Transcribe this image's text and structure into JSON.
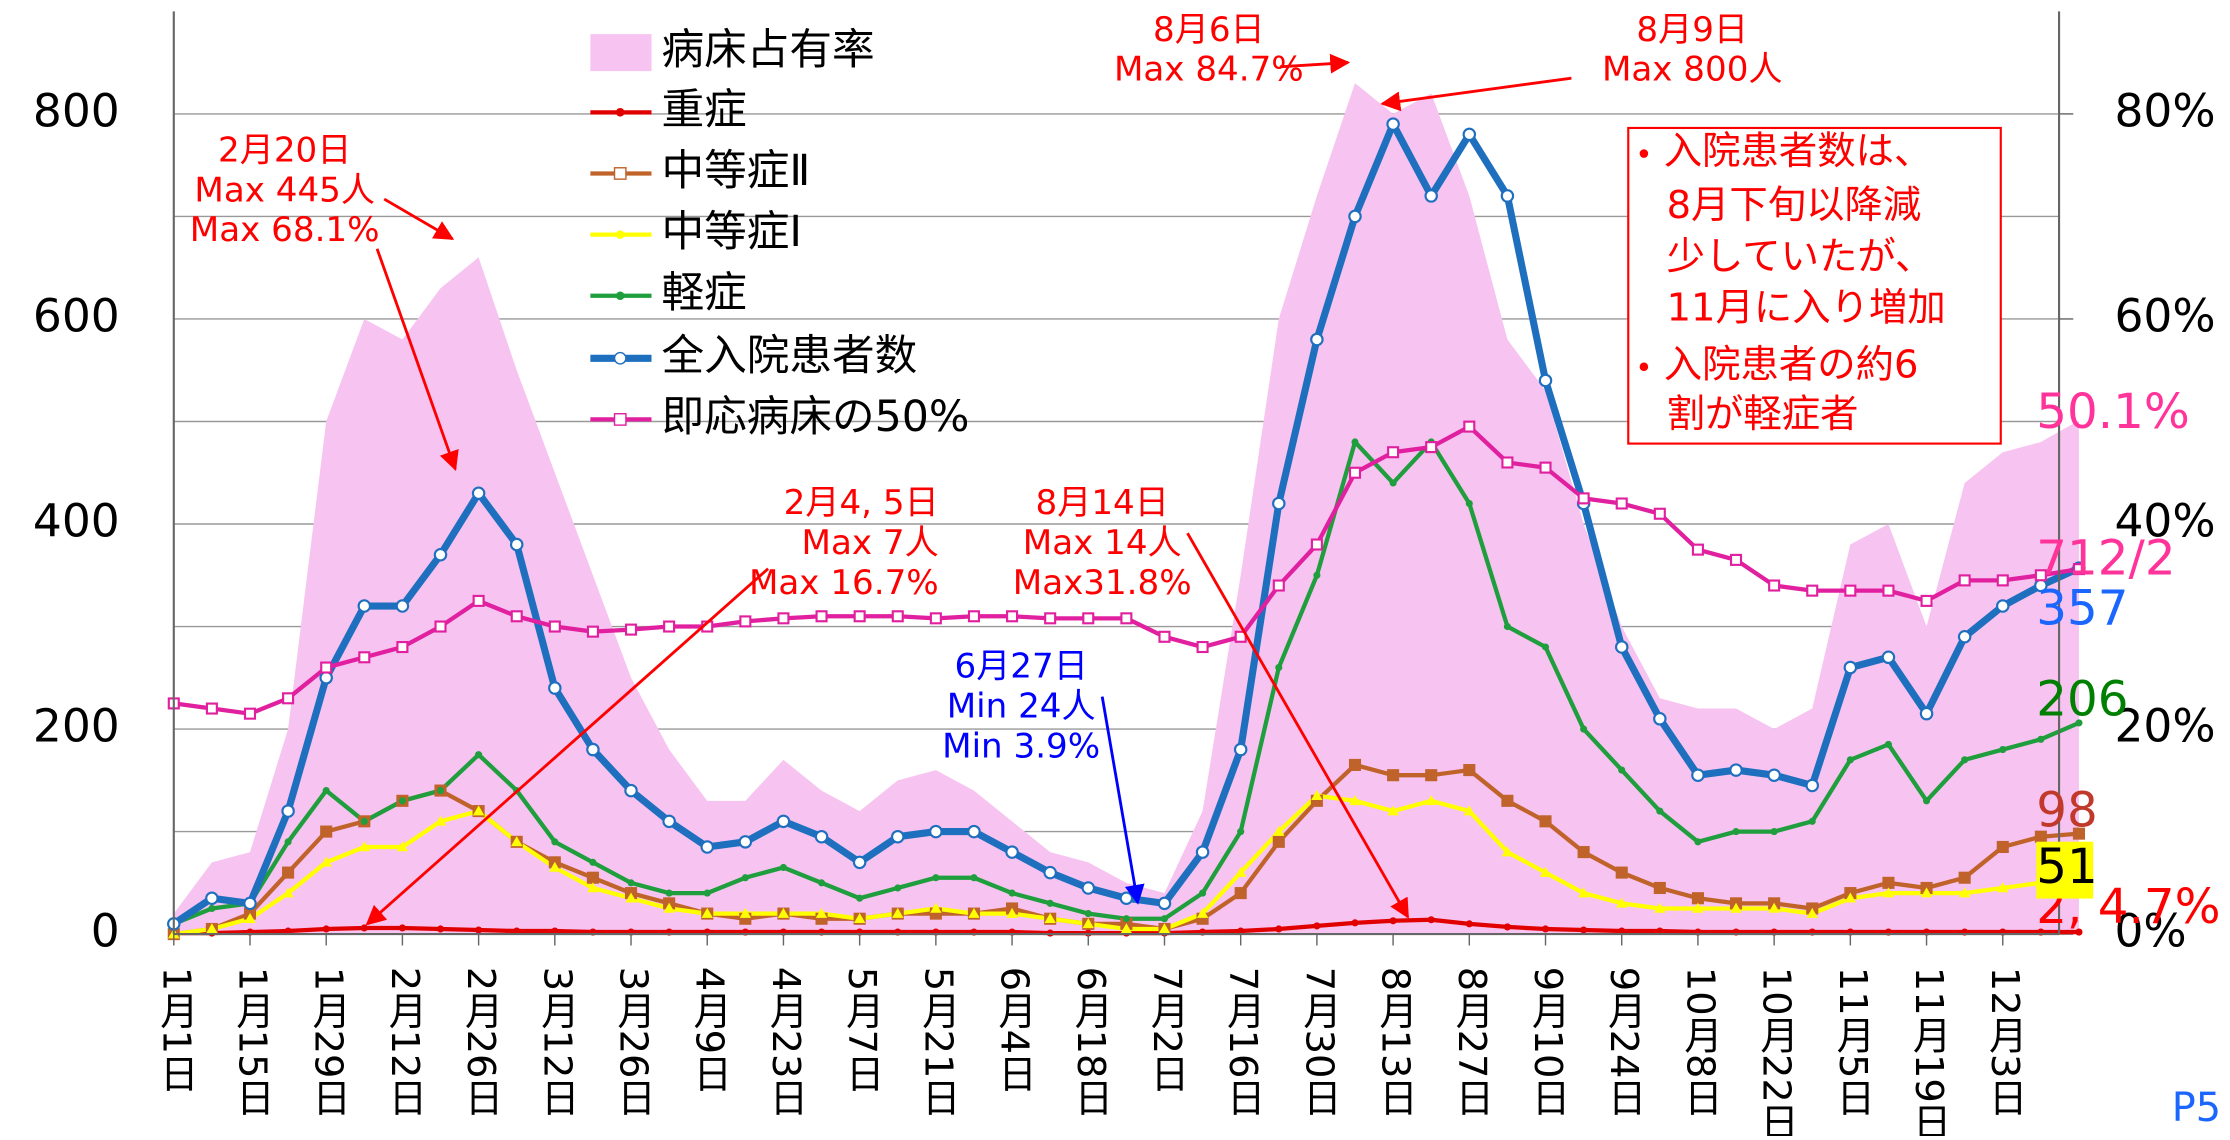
{
  "chart_data": {
    "type": "line",
    "categories": [
      "1月1日",
      null,
      "1月15日",
      null,
      "1月29日",
      null,
      "2月12日",
      null,
      "2月26日",
      null,
      "3月12日",
      null,
      "3月26日",
      null,
      "4月9日",
      null,
      "4月23日",
      null,
      "5月7日",
      null,
      "5月21日",
      null,
      "6月4日",
      null,
      "6月18日",
      null,
      "7月2日",
      null,
      "7月16日",
      null,
      "7月30日",
      null,
      "8月13日",
      null,
      "8月27日",
      null,
      "9月10日",
      null,
      "9月24日",
      null,
      "10月8日",
      null,
      "10月22日",
      null,
      "11月5日",
      null,
      "11月19日",
      null,
      "12月3日",
      null,
      null
    ],
    "ylim": [
      0,
      900
    ],
    "yticks": [
      0,
      200,
      400,
      600,
      800
    ],
    "minor_yticks": [
      100,
      300,
      500,
      700
    ],
    "y2lim": [
      0,
      90
    ],
    "y2ticks": [
      {
        "value": 0,
        "label": "0%"
      },
      {
        "value": 20,
        "label": "20%"
      },
      {
        "value": 40,
        "label": "40%"
      },
      {
        "value": 60,
        "label": "60%"
      },
      {
        "value": 80,
        "label": "80%"
      }
    ],
    "grid": true,
    "series": [
      {
        "name": "病床占有率",
        "kind": "area",
        "axis": "y2",
        "color": "#f7c3f0",
        "end_label": "50.1%",
        "end_color": "#ff3399",
        "values": [
          2,
          7,
          8,
          20,
          50,
          60,
          58,
          63,
          66,
          55,
          45,
          35,
          25,
          18,
          13,
          13,
          17,
          14,
          12,
          15,
          16,
          14,
          11,
          8,
          7,
          5,
          4,
          12,
          35,
          60,
          72,
          83,
          80,
          82,
          72,
          58,
          53,
          40,
          30,
          23,
          22,
          22,
          20,
          22,
          38,
          40,
          30,
          44,
          47,
          48,
          50.1
        ]
      },
      {
        "name": "重症",
        "kind": "line",
        "color": "#e00000",
        "marker": "dot",
        "end_label": "2, 4.7%",
        "end_color": "#ff0000",
        "values": [
          1,
          1,
          2,
          3,
          5,
          6,
          6,
          5,
          4,
          3,
          3,
          2,
          2,
          2,
          2,
          2,
          2,
          2,
          2,
          2,
          2,
          2,
          2,
          1,
          1,
          1,
          1,
          2,
          3,
          5,
          8,
          11,
          13,
          14,
          10,
          7,
          5,
          4,
          3,
          3,
          2,
          2,
          2,
          2,
          2,
          2,
          2,
          2,
          2,
          2,
          2
        ]
      },
      {
        "name": "中等症Ⅱ",
        "kind": "line",
        "color": "#c0632b",
        "marker": "square",
        "end_label": "98",
        "end_color": "#c0392b",
        "values": [
          0,
          5,
          20,
          60,
          100,
          110,
          130,
          140,
          120,
          90,
          70,
          55,
          40,
          30,
          20,
          15,
          20,
          15,
          15,
          20,
          20,
          20,
          25,
          15,
          10,
          10,
          5,
          15,
          40,
          90,
          130,
          165,
          155,
          155,
          160,
          130,
          110,
          80,
          60,
          45,
          35,
          30,
          30,
          25,
          40,
          50,
          45,
          55,
          85,
          95,
          98
        ]
      },
      {
        "name": "中等症Ⅰ",
        "kind": "line",
        "color": "#ffff00",
        "marker": "tri",
        "end_label": "51",
        "end_color": "#000000",
        "end_bg": "#ffff00",
        "values": [
          0,
          5,
          15,
          40,
          70,
          85,
          85,
          110,
          120,
          90,
          65,
          45,
          35,
          25,
          20,
          20,
          20,
          20,
          15,
          20,
          25,
          20,
          20,
          15,
          10,
          5,
          5,
          20,
          60,
          100,
          135,
          130,
          120,
          130,
          120,
          80,
          60,
          40,
          30,
          25,
          25,
          25,
          25,
          20,
          35,
          40,
          40,
          40,
          45,
          50,
          51
        ]
      },
      {
        "name": "軽症",
        "kind": "line",
        "color": "#1e9e3c",
        "marker": "dot",
        "end_label": "206",
        "end_color": "#008000",
        "values": [
          10,
          25,
          30,
          90,
          140,
          110,
          130,
          140,
          175,
          140,
          90,
          70,
          50,
          40,
          40,
          55,
          65,
          50,
          35,
          45,
          55,
          55,
          40,
          30,
          20,
          15,
          15,
          40,
          100,
          260,
          350,
          480,
          440,
          480,
          420,
          300,
          280,
          200,
          160,
          120,
          90,
          100,
          100,
          110,
          170,
          185,
          130,
          170,
          180,
          190,
          206
        ]
      },
      {
        "name": "全入院患者数",
        "kind": "line",
        "color": "#1f6fbf",
        "marker": "circle",
        "width": 5,
        "end_label": "357",
        "end_color": "#1a66ff",
        "values": [
          10,
          35,
          30,
          120,
          250,
          320,
          320,
          370,
          430,
          380,
          240,
          180,
          140,
          110,
          85,
          90,
          110,
          95,
          70,
          95,
          100,
          100,
          80,
          60,
          45,
          35,
          30,
          80,
          180,
          420,
          580,
          700,
          790,
          720,
          780,
          720,
          540,
          420,
          280,
          210,
          155,
          160,
          155,
          145,
          260,
          270,
          215,
          290,
          320,
          340,
          357
        ]
      },
      {
        "name": "即応病床の50%",
        "kind": "line",
        "color": "#e0209f",
        "marker": "square",
        "end_label": "712/2",
        "end_color": "#ff3399",
        "values": [
          225,
          220,
          215,
          230,
          260,
          270,
          280,
          300,
          325,
          310,
          300,
          295,
          297,
          300,
          300,
          305,
          308,
          310,
          310,
          310,
          308,
          310,
          310,
          308,
          308,
          308,
          290,
          280,
          290,
          340,
          380,
          450,
          470,
          475,
          495,
          460,
          455,
          425,
          420,
          410,
          375,
          365,
          340,
          335,
          335,
          335,
          325,
          345,
          345,
          350,
          356
        ]
      }
    ],
    "annotations": [
      {
        "lines": [
          "2月20日",
          "Max 445人",
          "Max 68.1%"
        ],
        "color": "#ff0000"
      },
      {
        "lines": [
          "8月6日",
          "Max 84.7%"
        ],
        "color": "#ff0000"
      },
      {
        "lines": [
          "8月9日",
          "Max 800人"
        ],
        "color": "#ff0000"
      },
      {
        "lines": [
          "2月4, 5日",
          "Max 7人",
          "Max 16.7%"
        ],
        "color": "#ff0000"
      },
      {
        "lines": [
          "8月14日",
          "Max 14人",
          "Max31.8%"
        ],
        "color": "#ff0000"
      },
      {
        "lines": [
          "6月27日",
          "Min 24人",
          "Min 3.9%"
        ],
        "color": "#0000ff"
      }
    ],
    "note": [
      [
        "入院患者数は、",
        "8月下旬以降減",
        "少していたが、",
        "11月に入り増加"
      ],
      [
        "入院患者の約6",
        "割が軽症者"
      ]
    ],
    "page_number": "P5"
  }
}
